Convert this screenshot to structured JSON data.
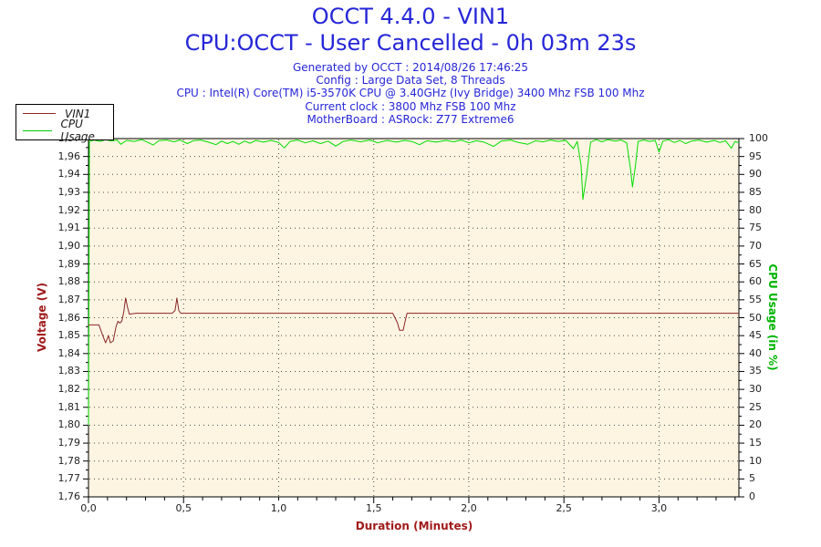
{
  "header": {
    "title": "OCCT 4.4.0 - VIN1",
    "subtitle": "CPU:OCCT - User Cancelled - 0h 03m 23s",
    "info_lines": [
      "Generated by OCCT : 2014/08/26 17:46:25",
      "Config : Large Data Set, 8 Threads",
      "CPU : Intel(R) Core(TM) i5-3570K CPU @ 3.40GHz (Ivy Bridge) 3400 Mhz FSB 100 Mhz",
      "Current clock : 3800 Mhz FSB 100 Mhz",
      "MotherBoard : ASRock: Z77 Extreme6"
    ]
  },
  "legend": {
    "items": [
      {
        "label": "VIN1",
        "color": "#8b2626"
      },
      {
        "label": "CPU Usage",
        "color": "#00cc00"
      }
    ]
  },
  "colors": {
    "title_blue": "#2626d8",
    "axis_red": "#a01a1a",
    "line_red": "#8b2626",
    "axis_green": "#00b400",
    "line_green": "#00dc00",
    "plot_bg": "#fdf5e2",
    "grid": "#4a4a4a",
    "tick_label": "#222222",
    "border": "#000000"
  },
  "chart_data": {
    "type": "line",
    "title": "OCCT 4.4.0 - VIN1",
    "x_axis": {
      "label": "Duration (Minutes)",
      "min": 0,
      "max": 3.42,
      "major_tick_labels": [
        "0,0",
        "0,5",
        "1,0",
        "1,5",
        "2,0",
        "2,5",
        "3,0"
      ],
      "major_tick_values": [
        0,
        0.5,
        1.0,
        1.5,
        2.0,
        2.5,
        3.0
      ],
      "minor_step": 0.1,
      "grid": "dotted"
    },
    "y_left_axis": {
      "label": "Voltage (V)",
      "min": 1.76,
      "max": 1.97,
      "tick_labels_top_to_bottom": [
        "1,97",
        "1,96",
        "1,94",
        "1,93",
        "1,92",
        "1,91",
        "1,90",
        "1,89",
        "1,88",
        "1,87",
        "1,86",
        "1,85",
        "1,84",
        "1,83",
        "1,82",
        "1,81",
        "1,80",
        "1,79",
        "1,78",
        "1,77",
        "1,76"
      ],
      "grid": "dotted"
    },
    "y_right_axis": {
      "label": "CPU Usage (in %)",
      "min": 0,
      "max": 100,
      "step": 5,
      "tick_labels_top_to_bottom": [
        "100",
        "95",
        "90",
        "85",
        "80",
        "75",
        "70",
        "65",
        "60",
        "55",
        "50",
        "45",
        "40",
        "35",
        "30",
        "25",
        "20",
        "15",
        "10",
        "5",
        "0"
      ]
    },
    "series": [
      {
        "name": "CPU Usage",
        "axis": "right",
        "color": "#00dc00",
        "points": [
          [
            0,
            20
          ],
          [
            0.005,
            99.2
          ],
          [
            0.03,
            99.6
          ],
          [
            0.06,
            99.2
          ],
          [
            0.09,
            99.7
          ],
          [
            0.12,
            99.3
          ],
          [
            0.15,
            99.6
          ],
          [
            0.17,
            98.4
          ],
          [
            0.2,
            99.5
          ],
          [
            0.24,
            99.2
          ],
          [
            0.28,
            99.7
          ],
          [
            0.31,
            99.0
          ],
          [
            0.34,
            98.2
          ],
          [
            0.37,
            99.4
          ],
          [
            0.41,
            99.6
          ],
          [
            0.45,
            99.1
          ],
          [
            0.48,
            99.6
          ],
          [
            0.52,
            98.6
          ],
          [
            0.55,
            99.4
          ],
          [
            0.59,
            99.6
          ],
          [
            0.63,
            99.0
          ],
          [
            0.67,
            98.3
          ],
          [
            0.7,
            99.3
          ],
          [
            0.73,
            98.6
          ],
          [
            0.76,
            99.2
          ],
          [
            0.79,
            98.4
          ],
          [
            0.82,
            99.3
          ],
          [
            0.85,
            98.7
          ],
          [
            0.88,
            99.5
          ],
          [
            0.92,
            99.0
          ],
          [
            0.96,
            99.5
          ],
          [
            1.0,
            98.9
          ],
          [
            1.03,
            97.4
          ],
          [
            1.06,
            99.2
          ],
          [
            1.1,
            99.6
          ],
          [
            1.14,
            98.8
          ],
          [
            1.18,
            99.4
          ],
          [
            1.22,
            98.6
          ],
          [
            1.26,
            99.3
          ],
          [
            1.3,
            97.9
          ],
          [
            1.34,
            99.2
          ],
          [
            1.38,
            99.6
          ],
          [
            1.43,
            99.1
          ],
          [
            1.48,
            99.6
          ],
          [
            1.52,
            98.8
          ],
          [
            1.57,
            99.5
          ],
          [
            1.62,
            99.0
          ],
          [
            1.66,
            99.5
          ],
          [
            1.7,
            99.2
          ],
          [
            1.74,
            98.3
          ],
          [
            1.78,
            99.4
          ],
          [
            1.83,
            99.0
          ],
          [
            1.88,
            99.5
          ],
          [
            1.92,
            99.1
          ],
          [
            1.96,
            99.6
          ],
          [
            2.0,
            98.8
          ],
          [
            2.04,
            99.4
          ],
          [
            2.08,
            99.0
          ],
          [
            2.13,
            97.8
          ],
          [
            2.17,
            99.3
          ],
          [
            2.22,
            99.6
          ],
          [
            2.26,
            98.9
          ],
          [
            2.31,
            98.4
          ],
          [
            2.35,
            99.4
          ],
          [
            2.39,
            99.1
          ],
          [
            2.43,
            99.6
          ],
          [
            2.47,
            99.2
          ],
          [
            2.51,
            99.5
          ],
          [
            2.55,
            97.2
          ],
          [
            2.57,
            99.2
          ],
          [
            2.59,
            92.5
          ],
          [
            2.6,
            83
          ],
          [
            2.62,
            90
          ],
          [
            2.64,
            99.0
          ],
          [
            2.67,
            99.7
          ],
          [
            2.7,
            99.1
          ],
          [
            2.73,
            99.7
          ],
          [
            2.77,
            99.3
          ],
          [
            2.8,
            99.6
          ],
          [
            2.83,
            98.8
          ],
          [
            2.85,
            91.5
          ],
          [
            2.86,
            86.5
          ],
          [
            2.875,
            92
          ],
          [
            2.89,
            99.2
          ],
          [
            2.92,
            99.6
          ],
          [
            2.95,
            99.2
          ],
          [
            2.98,
            99.5
          ],
          [
            3.0,
            96.2
          ],
          [
            3.02,
            99.3
          ],
          [
            3.05,
            99.7
          ],
          [
            3.08,
            98.9
          ],
          [
            3.11,
            99.5
          ],
          [
            3.14,
            98.6
          ],
          [
            3.17,
            99.3
          ],
          [
            3.21,
            99.6
          ],
          [
            3.25,
            99.0
          ],
          [
            3.29,
            99.5
          ],
          [
            3.32,
            98.9
          ],
          [
            3.35,
            99.4
          ],
          [
            3.38,
            97.3
          ],
          [
            3.4,
            99.2
          ],
          [
            3.42,
            98.8
          ]
        ]
      },
      {
        "name": "VIN1",
        "axis": "left",
        "color": "#8b2626",
        "points": [
          [
            0,
            1.856
          ],
          [
            0.055,
            1.856
          ],
          [
            0.075,
            1.85
          ],
          [
            0.09,
            1.846
          ],
          [
            0.105,
            1.85
          ],
          [
            0.115,
            1.846
          ],
          [
            0.13,
            1.847
          ],
          [
            0.145,
            1.855
          ],
          [
            0.155,
            1.858
          ],
          [
            0.165,
            1.857
          ],
          [
            0.175,
            1.858
          ],
          [
            0.185,
            1.863
          ],
          [
            0.195,
            1.871
          ],
          [
            0.205,
            1.866
          ],
          [
            0.215,
            1.862
          ],
          [
            0.25,
            1.8625
          ],
          [
            0.44,
            1.8625
          ],
          [
            0.455,
            1.864
          ],
          [
            0.465,
            1.871
          ],
          [
            0.475,
            1.864
          ],
          [
            0.485,
            1.8625
          ],
          [
            1.6,
            1.8625
          ],
          [
            1.625,
            1.857
          ],
          [
            1.635,
            1.853
          ],
          [
            1.655,
            1.853
          ],
          [
            1.665,
            1.858
          ],
          [
            1.675,
            1.8625
          ],
          [
            3.42,
            1.8625
          ]
        ]
      }
    ]
  }
}
